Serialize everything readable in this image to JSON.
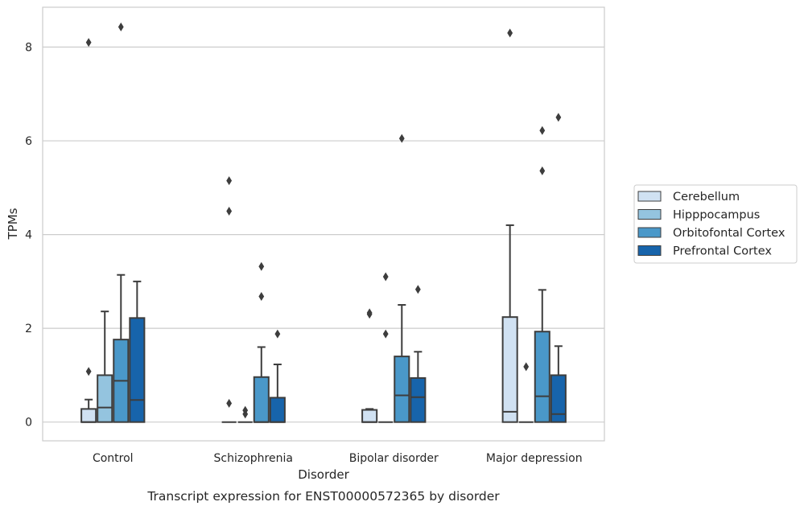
{
  "chart_data": {
    "type": "box",
    "title": "",
    "caption": "Transcript expression for ENST00000572365 by disorder",
    "xlabel": "Disorder",
    "ylabel": "TPMs",
    "ylim": [
      -0.4,
      8.85
    ],
    "yticks": [
      0,
      2,
      4,
      6,
      8
    ],
    "grid": true,
    "legend_position": "right",
    "categories": [
      "Control",
      "Schizophrenia",
      "Bipolar disorder",
      "Major depression"
    ],
    "series": [
      {
        "name": "Cerebellum",
        "color": "#d0e1f2",
        "boxes": [
          {
            "q1": 0.0,
            "median": 0.0,
            "q3": 0.28,
            "whisker_low": 0.0,
            "whisker_high": 0.48,
            "outliers": [
              1.08,
              8.1
            ]
          },
          {
            "q1": 0.0,
            "median": 0.0,
            "q3": 0.0,
            "whisker_low": 0.0,
            "whisker_high": 0.0,
            "outliers": [
              0.4,
              4.5,
              5.15
            ]
          },
          {
            "q1": 0.0,
            "median": 0.0,
            "q3": 0.26,
            "whisker_low": 0.0,
            "whisker_high": 0.28,
            "outliers": [
              2.3,
              2.33
            ]
          },
          {
            "q1": 0.0,
            "median": 0.22,
            "q3": 2.24,
            "whisker_low": 0.0,
            "whisker_high": 4.2,
            "outliers": [
              8.3
            ]
          }
        ]
      },
      {
        "name": "Hipppocampus",
        "color": "#94c4df",
        "boxes": [
          {
            "q1": 0.0,
            "median": 0.31,
            "q3": 1.0,
            "whisker_low": 0.0,
            "whisker_high": 2.36,
            "outliers": []
          },
          {
            "q1": 0.0,
            "median": 0.0,
            "q3": 0.0,
            "whisker_low": 0.0,
            "whisker_high": 0.0,
            "outliers": [
              0.17,
              0.25
            ]
          },
          {
            "q1": 0.0,
            "median": 0.0,
            "q3": 0.0,
            "whisker_low": 0.0,
            "whisker_high": 0.0,
            "outliers": [
              1.88,
              3.1
            ]
          },
          {
            "q1": 0.0,
            "median": 0.0,
            "q3": 0.0,
            "whisker_low": 0.0,
            "whisker_high": 0.0,
            "outliers": [
              1.18
            ]
          }
        ]
      },
      {
        "name": "Orbitofontal Cortex",
        "color": "#4a98c9",
        "boxes": [
          {
            "q1": 0.0,
            "median": 0.88,
            "q3": 1.76,
            "whisker_low": 0.0,
            "whisker_high": 3.14,
            "outliers": [
              8.43
            ]
          },
          {
            "q1": 0.0,
            "median": 0.0,
            "q3": 0.96,
            "whisker_low": 0.0,
            "whisker_high": 1.6,
            "outliers": [
              2.68,
              3.32
            ]
          },
          {
            "q1": 0.0,
            "median": 0.57,
            "q3": 1.4,
            "whisker_low": 0.0,
            "whisker_high": 2.5,
            "outliers": [
              6.05
            ]
          },
          {
            "q1": 0.0,
            "median": 0.55,
            "q3": 1.93,
            "whisker_low": 0.0,
            "whisker_high": 2.82,
            "outliers": [
              5.36,
              6.22
            ]
          }
        ]
      },
      {
        "name": "Prefrontal Cortex",
        "color": "#1764ab",
        "boxes": [
          {
            "q1": 0.0,
            "median": 0.47,
            "q3": 2.22,
            "whisker_low": 0.0,
            "whisker_high": 3.0,
            "outliers": []
          },
          {
            "q1": 0.0,
            "median": 0.0,
            "q3": 0.52,
            "whisker_low": 0.0,
            "whisker_high": 1.23,
            "outliers": [
              1.88
            ]
          },
          {
            "q1": 0.0,
            "median": 0.53,
            "q3": 0.94,
            "whisker_low": 0.0,
            "whisker_high": 1.5,
            "outliers": [
              2.83
            ]
          },
          {
            "q1": 0.0,
            "median": 0.17,
            "q3": 1.0,
            "whisker_low": 0.0,
            "whisker_high": 1.62,
            "outliers": [
              6.5
            ]
          }
        ]
      }
    ]
  }
}
